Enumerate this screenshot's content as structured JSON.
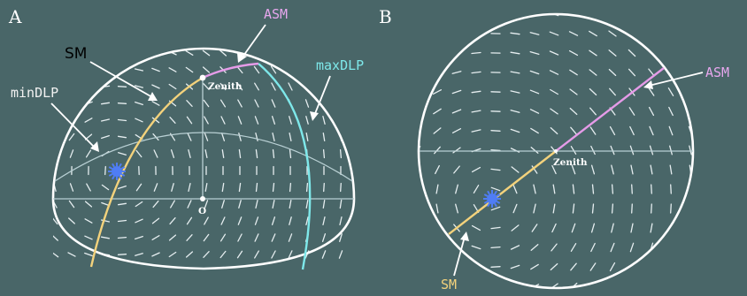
{
  "panels": {
    "a": {
      "letter": "A",
      "labels": {
        "asm": "ASM",
        "sm": "SM",
        "max_dlp": "maxDLP",
        "min_dlp": "minDLP",
        "zenith": "Zenith",
        "origin": "O"
      }
    },
    "b": {
      "letter": "B",
      "labels": {
        "asm": "ASM",
        "sm": "SM",
        "zenith": "Zenith"
      }
    }
  },
  "colors": {
    "background": "#496668",
    "asm_line": "#e59be8",
    "sm_line": "#f3d27c",
    "max_dlp_line": "#7ee8ea",
    "sun": "#4f7df5",
    "asm_label": "#e7a7ee",
    "sm_label_b": "#f3d27c",
    "max_dlp_label": "#7ee8ea",
    "min_dlp_label": "#f2f2f2",
    "sm_label_a": "#000000"
  },
  "icons": {
    "sun": "sun-icon"
  }
}
